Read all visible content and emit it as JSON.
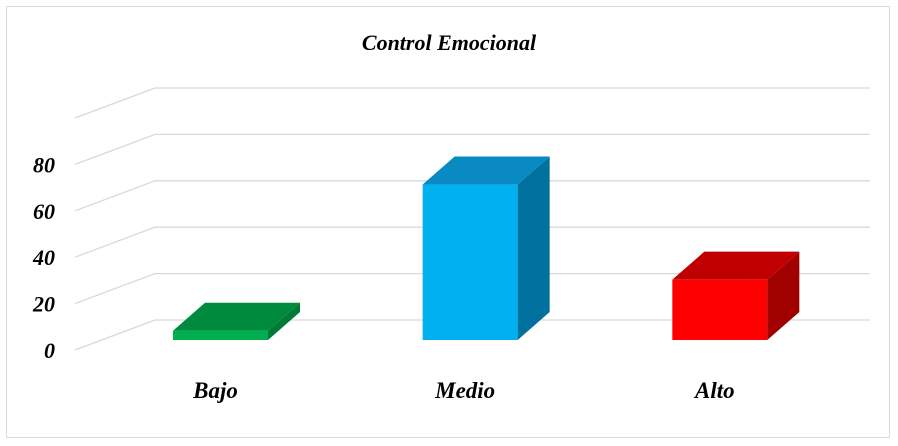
{
  "chart_data": {
    "type": "bar",
    "title": "Control Emocional",
    "xlabel": "",
    "ylabel": "",
    "categories": [
      "Bajo",
      "Medio",
      "Alto"
    ],
    "values": [
      4,
      67,
      26
    ],
    "ylim": [
      0,
      100
    ],
    "yticks": [
      0,
      20,
      40,
      60,
      80
    ],
    "grid": true,
    "legend": "none",
    "three_d": true
  },
  "colors": {
    "bars": [
      {
        "front": "#00b050",
        "top": "#008a3e",
        "side": "#007a37"
      },
      {
        "front": "#00b0f0",
        "top": "#0a8ac2",
        "side": "#00709e"
      },
      {
        "front": "#ff0000",
        "top": "#c00000",
        "side": "#a00000"
      }
    ],
    "grid": "#d9d9d9",
    "text": "#000000"
  }
}
